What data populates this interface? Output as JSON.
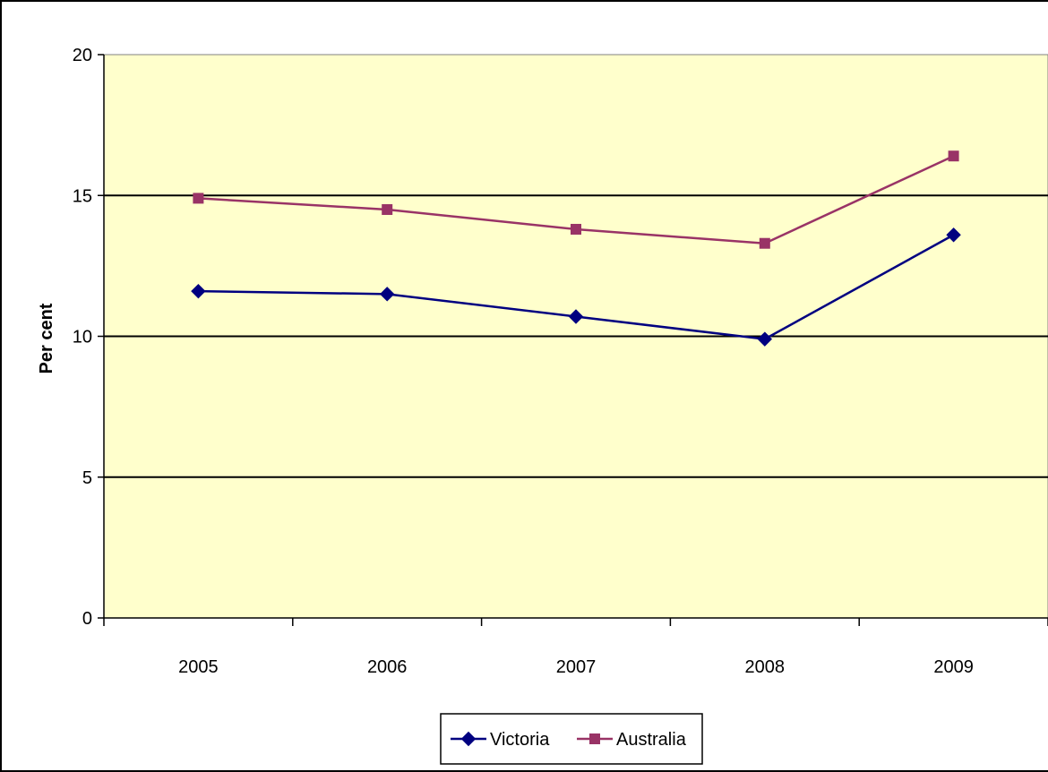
{
  "chart_data": {
    "type": "line",
    "title": "",
    "xlabel": "",
    "ylabel": "Per cent",
    "categories": [
      "2005",
      "2006",
      "2007",
      "2008",
      "2009"
    ],
    "ylim": [
      0,
      20
    ],
    "yticks": [
      "0",
      "5",
      "10",
      "15",
      "20"
    ],
    "grid": true,
    "legend_position": "bottom",
    "series": [
      {
        "name": "Victoria",
        "values": [
          11.6,
          11.5,
          10.7,
          9.9,
          13.6
        ],
        "color": "#000080",
        "marker": "diamond"
      },
      {
        "name": "Australia",
        "values": [
          14.9,
          14.5,
          13.8,
          13.3,
          16.4
        ],
        "color": "#993366",
        "marker": "square"
      }
    ],
    "plot_background": "#ffffcc"
  }
}
